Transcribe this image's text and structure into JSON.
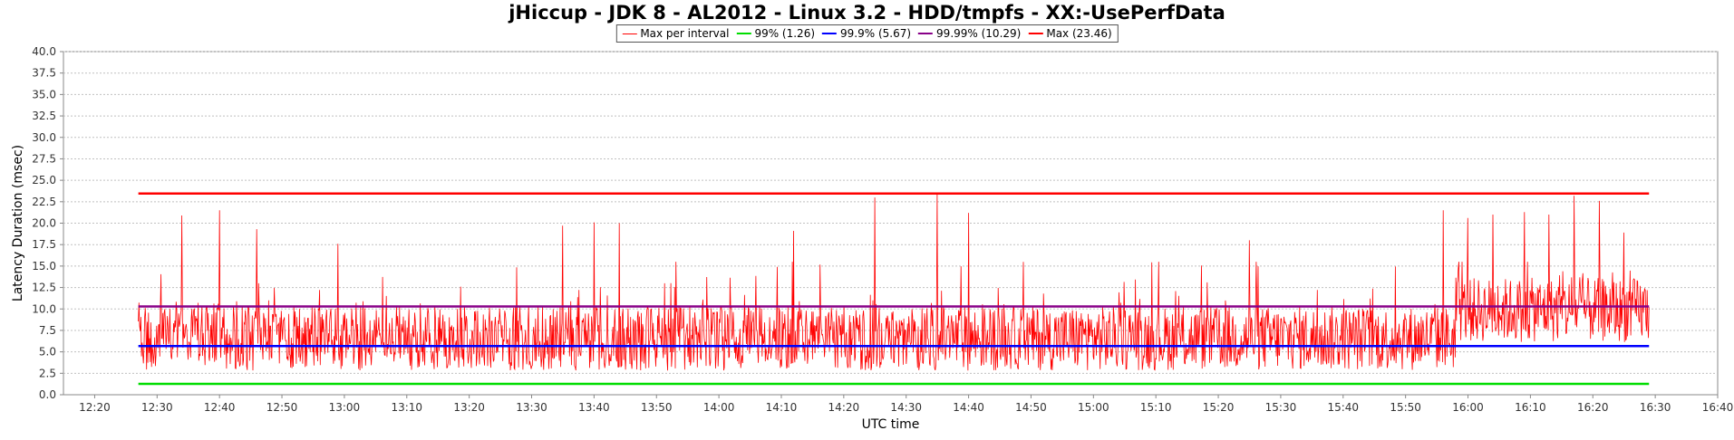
{
  "chart_data": {
    "type": "line",
    "title": "jHiccup - JDK 8 - AL2012 - Linux 3.2 - HDD/tmpfs - XX:-UsePerfData",
    "xlabel": "UTC time",
    "ylabel": "Latency Duration (msec)",
    "ylim": [
      0,
      40
    ],
    "y_ticks": [
      "0.0",
      "2.5",
      "5.0",
      "7.5",
      "10.0",
      "12.5",
      "15.0",
      "17.5",
      "20.0",
      "22.5",
      "25.0",
      "27.5",
      "30.0",
      "32.5",
      "35.0",
      "37.5",
      "40.0"
    ],
    "x_range_minutes": [
      "12:15",
      "16:40"
    ],
    "x_ticks": [
      "12:20",
      "12:30",
      "12:40",
      "12:50",
      "13:00",
      "13:10",
      "13:20",
      "13:30",
      "13:40",
      "13:50",
      "14:00",
      "14:10",
      "14:20",
      "14:30",
      "14:40",
      "14:50",
      "15:00",
      "15:10",
      "15:20",
      "15:30",
      "15:40",
      "15:50",
      "16:00",
      "16:10",
      "16:20",
      "16:30",
      "16:40"
    ],
    "grid": true,
    "legend_position": "top-center",
    "x_start": "12:27",
    "x_end": "16:29",
    "series": [
      {
        "name": "Max per interval",
        "color": "#ff0000",
        "kind": "noisy",
        "peaks": [
          {
            "t": "12:34",
            "v": 20.9
          },
          {
            "t": "12:40",
            "v": 21.5
          },
          {
            "t": "12:46",
            "v": 19.3
          },
          {
            "t": "12:59",
            "v": 17.6
          },
          {
            "t": "13:35",
            "v": 19.7
          },
          {
            "t": "13:40",
            "v": 20.1
          },
          {
            "t": "13:44",
            "v": 20.0
          },
          {
            "t": "14:12",
            "v": 19.1
          },
          {
            "t": "14:25",
            "v": 23.0
          },
          {
            "t": "14:35",
            "v": 23.5
          },
          {
            "t": "14:40",
            "v": 21.2
          },
          {
            "t": "15:25",
            "v": 18.0
          },
          {
            "t": "15:56",
            "v": 21.5
          },
          {
            "t": "16:00",
            "v": 20.6
          },
          {
            "t": "16:04",
            "v": 21.0
          },
          {
            "t": "16:09",
            "v": 21.3
          },
          {
            "t": "16:13",
            "v": 21.0
          },
          {
            "t": "16:17",
            "v": 23.2
          },
          {
            "t": "16:21",
            "v": 22.6
          },
          {
            "t": "16:25",
            "v": 18.9
          }
        ]
      },
      {
        "name": "99% (1.26)",
        "color": "#00dd00",
        "kind": "constant",
        "value": 1.26
      },
      {
        "name": "99.9% (5.67)",
        "color": "#0000ff",
        "kind": "constant",
        "value": 5.67
      },
      {
        "name": "99.99% (10.29)",
        "color": "#880088",
        "kind": "constant",
        "value": 10.29
      },
      {
        "name": "Max (23.46)",
        "color": "#ff0000",
        "kind": "constant",
        "value": 23.46
      }
    ]
  }
}
